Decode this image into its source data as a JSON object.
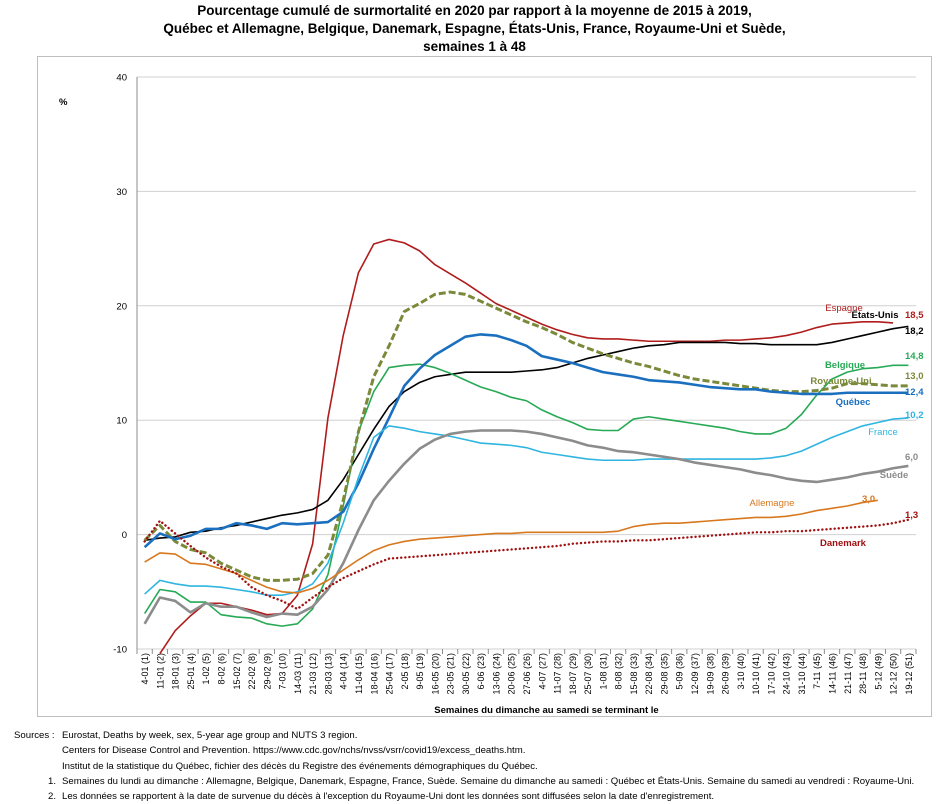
{
  "title": {
    "line1": "Pourcentage cumulé de surmortalité en 2020 par rapport à la moyenne de 2015 à 2019,",
    "line2": "Québec et Allemagne, Belgique, Danemark, Espagne, États-Unis, France, Royaume-Uni et Suède,",
    "line3": "semaines 1 à 48"
  },
  "notes": {
    "sources_label": "Sources :",
    "source1": "Eurostat, Deaths by week, sex, 5-year age group and NUTS 3 region.",
    "source2": "Centers for Disease Control and Prevention. https://www.cdc.gov/nchs/nvss/vsrr/covid19/excess_deaths.htm.",
    "source3": "Institut de la statistique du Québec, fichier des décès du Registre des événements démographiques du Québec.",
    "n1": "1.",
    "note1": "Semaines du lundi au dimanche : Allemagne, Belgique, Danemark, Espagne, France, Suède. Semaine du dimanche au samedi : Québec et États-Unis. Semaine du samedi au vendredi : Royaume-Uni.",
    "n2": "2.",
    "note2": "Les données se rapportent à la date de survenue du décès à l'exception du Royaume-Uni dont les données sont diffusées selon la date d'enregistrement."
  },
  "chart_data": {
    "type": "line",
    "title": "Pourcentage cumulé de surmortalité en 2020 par rapport à la moyenne de 2015 à 2019, Québec et Allemagne, Belgique, Danemark, Espagne, États-Unis, France, Royaume-Uni et Suède, semaines 1 à 48",
    "ylabel": "%",
    "xlabel": "Semaines du dimanche  au samedi se terminant le",
    "ylim": [
      -10,
      40
    ],
    "yticks": [
      -10,
      0,
      10,
      20,
      30,
      40
    ],
    "grid": "horizontal",
    "categories": [
      "4-01 (1)",
      "11-01 (2)",
      "18-01 (3)",
      "25-01 (4)",
      "1-02 (5)",
      "8-02 (6)",
      "15-02 (7)",
      "22-02 (8)",
      "29-02 (9)",
      "7-03 (10)",
      "14-03 (11)",
      "21-03 (12)",
      "28-03 (13)",
      "4-04 (14)",
      "11-04 (15)",
      "18-04 (16)",
      "25-04 (17)",
      "2-05 (18)",
      "9-05 (19)",
      "16-05 (20)",
      "23-05 (21)",
      "30-05 (22)",
      "6-06 (23)",
      "13-06 (24)",
      "20-06 (25)",
      "27-06 (26)",
      "4-07 (27)",
      "11-07 (28)",
      "18-07 (29)",
      "25-07 (30)",
      "1-08 (31)",
      "8-08 (32)",
      "15-08 (33)",
      "22-08 (34)",
      "29-08 (35)",
      "5-09 (36)",
      "12-09 (37)",
      "19-09 (38)",
      "26-09 (39)",
      "3-10 (40)",
      "10-10 (41)",
      "17-10 (42)",
      "24-10 (43)",
      "31-10 (44)",
      "7-11 (45)",
      "14-11 (46)",
      "21-11 (47)",
      "28-11 (48)",
      "5-12 (49)",
      "12-12 (50)",
      "19-12 (51)"
    ],
    "series": [
      {
        "name": "Espagne",
        "end_label": "18,5",
        "color": "#b01c1c",
        "style": "solid",
        "width": 1.6,
        "values": [
          null,
          -10.4,
          -8.4,
          -7.1,
          -6.0,
          -6.0,
          -6.3,
          -6.6,
          -7.0,
          -6.9,
          -5.3,
          -0.8,
          10.2,
          17.4,
          22.9,
          25.4,
          25.8,
          25.5,
          24.8,
          23.6,
          22.8,
          22.0,
          21.1,
          20.2,
          19.6,
          19.0,
          18.4,
          17.9,
          17.5,
          17.2,
          17.1,
          17.1,
          17.0,
          16.9,
          16.9,
          16.9,
          16.9,
          16.9,
          17.0,
          17.0,
          17.1,
          17.2,
          17.4,
          17.7,
          18.1,
          18.4,
          18.5,
          18.6,
          18.6,
          18.5,
          null
        ]
      },
      {
        "name": "États-Unis",
        "end_label": "18,2",
        "color": "#000000",
        "style": "solid",
        "width": 1.6,
        "values": [
          -0.5,
          -0.3,
          -0.2,
          0.2,
          0.3,
          0.6,
          0.8,
          1.1,
          1.4,
          1.7,
          1.9,
          2.2,
          3.0,
          4.8,
          7.0,
          9.2,
          11.2,
          12.5,
          13.3,
          13.8,
          14.0,
          14.2,
          14.2,
          14.2,
          14.2,
          14.3,
          14.4,
          14.6,
          15.0,
          15.4,
          15.7,
          16.0,
          16.3,
          16.5,
          16.6,
          16.8,
          16.8,
          16.8,
          16.8,
          16.7,
          16.7,
          16.6,
          16.6,
          16.6,
          16.6,
          16.8,
          17.1,
          17.4,
          17.7,
          18.0,
          18.2
        ]
      },
      {
        "name": "Belgique",
        "end_label": "14,8",
        "color": "#27a955",
        "style": "solid",
        "width": 1.6,
        "values": [
          -6.9,
          -4.8,
          -5.0,
          -5.9,
          -5.9,
          -7.0,
          -7.2,
          -7.3,
          -7.8,
          -8.0,
          -7.8,
          -6.5,
          -3.5,
          2.5,
          9.0,
          12.5,
          14.6,
          14.8,
          14.9,
          14.6,
          14.1,
          13.5,
          12.9,
          12.5,
          12.0,
          11.7,
          10.9,
          10.3,
          9.8,
          9.2,
          9.1,
          9.1,
          10.1,
          10.3,
          10.1,
          9.9,
          9.7,
          9.5,
          9.3,
          9.0,
          8.8,
          8.8,
          9.3,
          10.5,
          12.2,
          13.6,
          14.2,
          14.5,
          14.6,
          14.8,
          14.8
        ]
      },
      {
        "name": "Royaume-Uni",
        "end_label": "13,0",
        "color": "#7a8a3a",
        "style": "dashed",
        "width": 3.0,
        "values": [
          -0.5,
          0.8,
          -0.6,
          -1.3,
          -1.6,
          -2.5,
          -3.1,
          -3.7,
          -4.0,
          -4.0,
          -3.9,
          -3.4,
          -1.8,
          3.0,
          9.0,
          13.8,
          16.5,
          19.5,
          20.2,
          21.0,
          21.2,
          21.0,
          20.4,
          19.8,
          19.2,
          18.6,
          18.1,
          17.5,
          16.8,
          16.3,
          15.8,
          15.4,
          15.0,
          14.7,
          14.3,
          13.9,
          13.6,
          13.4,
          13.2,
          13.0,
          12.8,
          12.6,
          12.5,
          12.5,
          12.6,
          12.8,
          13.2,
          13.2,
          13.1,
          13.0,
          13.0
        ]
      },
      {
        "name": "Québec",
        "end_label": "12,4",
        "color": "#1b6fbf",
        "style": "solid",
        "width": 2.6,
        "values": [
          -1.1,
          0.1,
          -0.4,
          -0.1,
          0.5,
          0.5,
          1.0,
          0.8,
          0.5,
          1.0,
          0.9,
          1.0,
          1.1,
          2.0,
          4.5,
          7.5,
          10.2,
          13.0,
          14.5,
          15.7,
          16.5,
          17.3,
          17.5,
          17.4,
          17.0,
          16.5,
          15.6,
          15.3,
          15.0,
          14.6,
          14.2,
          14.0,
          13.8,
          13.5,
          13.4,
          13.3,
          13.1,
          12.9,
          12.8,
          12.7,
          12.7,
          12.5,
          12.4,
          12.3,
          12.3,
          12.3,
          12.4,
          12.4,
          12.4,
          12.4,
          12.4
        ]
      },
      {
        "name": "France",
        "end_label": "10,2",
        "color": "#2fb5e0",
        "style": "solid",
        "width": 1.6,
        "values": [
          -5.2,
          -4.0,
          -4.3,
          -4.5,
          -4.5,
          -4.6,
          -4.8,
          -5.0,
          -5.3,
          -5.3,
          -5.0,
          -4.3,
          -2.5,
          1.0,
          5.0,
          8.5,
          9.5,
          9.3,
          9.0,
          8.8,
          8.6,
          8.3,
          8.0,
          7.9,
          7.8,
          7.6,
          7.2,
          7.0,
          6.8,
          6.6,
          6.5,
          6.5,
          6.5,
          6.6,
          6.6,
          6.6,
          6.6,
          6.6,
          6.6,
          6.6,
          6.6,
          6.7,
          6.9,
          7.3,
          7.9,
          8.5,
          9.0,
          9.5,
          9.8,
          10.1,
          10.2
        ]
      },
      {
        "name": "Suède",
        "end_label": "6,0",
        "color": "#8c8c8c",
        "style": "solid",
        "width": 2.6,
        "values": [
          -7.8,
          -5.5,
          -5.8,
          -6.8,
          -6.0,
          -6.3,
          -6.3,
          -6.8,
          -7.2,
          -6.9,
          -7.0,
          -6.3,
          -4.8,
          -2.5,
          0.4,
          3.0,
          4.7,
          6.2,
          7.5,
          8.3,
          8.8,
          9.0,
          9.1,
          9.1,
          9.1,
          9.0,
          8.8,
          8.5,
          8.2,
          7.8,
          7.6,
          7.3,
          7.2,
          7.0,
          6.8,
          6.6,
          6.3,
          6.1,
          5.9,
          5.7,
          5.4,
          5.2,
          4.9,
          4.7,
          4.6,
          4.8,
          5.0,
          5.3,
          5.5,
          5.8,
          6.0
        ]
      },
      {
        "name": "Allemagne",
        "end_label": "3,0",
        "color": "#d8781e",
        "style": "solid",
        "width": 1.6,
        "values": [
          -2.4,
          -1.6,
          -1.7,
          -2.5,
          -2.6,
          -3.0,
          -3.4,
          -4.0,
          -4.6,
          -5.0,
          -5.1,
          -4.7,
          -4.0,
          -3.1,
          -2.2,
          -1.4,
          -0.9,
          -0.6,
          -0.4,
          -0.3,
          -0.2,
          -0.1,
          0.0,
          0.1,
          0.1,
          0.2,
          0.2,
          0.2,
          0.2,
          0.2,
          0.2,
          0.3,
          0.7,
          0.9,
          1.0,
          1.0,
          1.1,
          1.2,
          1.3,
          1.4,
          1.5,
          1.5,
          1.6,
          1.8,
          2.1,
          2.3,
          2.5,
          2.8,
          3.0,
          null,
          null
        ]
      },
      {
        "name": "Danemark",
        "end_label": "1,3",
        "color": "#a01010",
        "style": "dotted",
        "width": 2.4,
        "values": [
          -0.6,
          1.2,
          0.1,
          -1.0,
          -2.0,
          -2.8,
          -3.4,
          -4.6,
          -5.3,
          -5.8,
          -6.5,
          -5.5,
          -4.6,
          -3.8,
          -3.2,
          -2.6,
          -2.1,
          -2.0,
          -1.9,
          -1.8,
          -1.7,
          -1.6,
          -1.5,
          -1.4,
          -1.3,
          -1.2,
          -1.1,
          -1.0,
          -0.8,
          -0.7,
          -0.6,
          -0.6,
          -0.5,
          -0.5,
          -0.4,
          -0.3,
          -0.2,
          -0.1,
          0.0,
          0.1,
          0.2,
          0.2,
          0.3,
          0.3,
          0.4,
          0.5,
          0.6,
          0.7,
          0.8,
          1.0,
          1.3
        ]
      }
    ],
    "series_labels": [
      "Espagne",
      "États-Unis",
      "Belgique",
      "Royaume-Uni",
      "Québec",
      "France",
      "Suède",
      "Allemagne",
      "Danemark"
    ]
  }
}
